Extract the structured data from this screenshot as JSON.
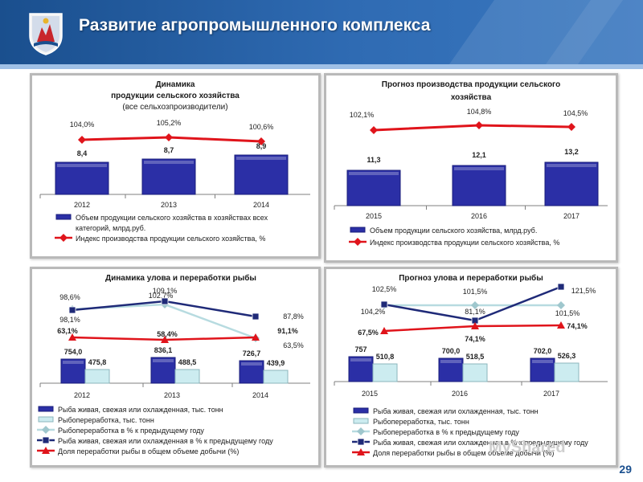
{
  "header": {
    "title": "Развитие агропромышленного комплекса"
  },
  "page_number": "29",
  "watermark": "MyShared",
  "colors": {
    "bar": "#2b2fa6",
    "bar_light": "#ccecf0",
    "line_red": "#e0141b",
    "line_navy": "#1f2a78",
    "line_light": "#b7dbe0"
  },
  "chart_data": [
    {
      "type": "bar",
      "title_lines": [
        "Динамика",
        "продукции сельского хозяйства",
        "(все сельхозпроизводители)"
      ],
      "categories": [
        "2012",
        "2013",
        "2014"
      ],
      "series": [
        {
          "name": "Объем продукции сельского хозяйства в хозяйствах всех категорий, млрд.руб.",
          "legend_lines": [
            "Объем продукции сельского хозяйства в хозяйствах всех",
            "категорий, млрд.руб."
          ],
          "kind": "bar",
          "values": [
            8.4,
            8.7,
            8.9
          ],
          "labels": [
            "8,4",
            "8,7",
            "8,9"
          ]
        },
        {
          "name": "Индекс производства продукции сельского хозяйства, %",
          "legend_lines": [
            "Индекс производства продукции сельского хозяйства, %"
          ],
          "kind": "line",
          "values": [
            104.0,
            105.2,
            100.6
          ],
          "labels": [
            "104,0%",
            "105,2%",
            "100,6%"
          ]
        }
      ],
      "legend_position": "bottom"
    },
    {
      "type": "bar",
      "title_lines": [
        "Прогноз производства продукции сельского",
        "хозяйства"
      ],
      "categories": [
        "2015",
        "2016",
        "2017"
      ],
      "series": [
        {
          "name": "Объем продукции сельского хозяйства, млрд.руб.",
          "legend_lines": [
            "Объем продукции сельского хозяйства, млрд.руб."
          ],
          "kind": "bar",
          "values": [
            11.3,
            12.1,
            13.2
          ],
          "labels": [
            "11,3",
            "12,1",
            "13,2"
          ]
        },
        {
          "name": "Индекс производства продукции сельского хозяйства, %",
          "legend_lines": [
            "Индекс производства продукции сельского хозяйства, %"
          ],
          "kind": "line",
          "values": [
            102.1,
            104.8,
            104.5
          ],
          "labels": [
            "102,1%",
            "104,8%",
            "104,5%"
          ]
        }
      ],
      "legend_position": "bottom"
    },
    {
      "type": "bar",
      "title_lines": [
        "Динамика улова и переработки рыбы"
      ],
      "categories": [
        "2012",
        "2013",
        "2014"
      ],
      "series": [
        {
          "name": "Рыба живая, свежая или охлажденная, тыс. тонн",
          "legend_lines": [
            "Рыба живая, свежая или охлажденная, тыс. тонн"
          ],
          "kind": "bar",
          "values": [
            754.0,
            836.1,
            726.7
          ],
          "labels": [
            "754,0",
            "836,1",
            "726,7"
          ]
        },
        {
          "name": "Рыбопереработка, тыс. тонн",
          "legend_lines": [
            "Рыбопереработка, тыс. тонн"
          ],
          "kind": "bar",
          "values": [
            475.8,
            488.5,
            439.9
          ],
          "labels": [
            "475,8",
            "488,5",
            "439,9"
          ]
        },
        {
          "name": "Рыбопереработка в % к предыдущему году",
          "legend_lines": [
            "Рыбопереработка в % к предыдущему году"
          ],
          "kind": "line",
          "values": [
            98.6,
            102.7,
            63.5
          ],
          "labels": [
            "98,6%",
            "102,7%",
            "63,5%"
          ]
        },
        {
          "name": "Рыба живая, свежая или охлажденная в % к предыдущему году",
          "legend_lines": [
            "Рыба живая, свежая или охлажденная в % к предыдущему году"
          ],
          "kind": "line",
          "values": [
            98.1,
            109.1,
            87.8
          ],
          "labels": [
            "98,1%",
            "109,1%",
            "87,8%"
          ]
        },
        {
          "name": "Доля переработки рыбы в общем объеме добычи (%)",
          "legend_lines": [
            "Доля переработки рыбы в общем объеме добычи (%)"
          ],
          "kind": "line",
          "values": [
            63.1,
            58.4,
            91.1
          ],
          "labels": [
            "63,1%",
            "58,4%",
            "91,1%"
          ]
        }
      ],
      "legend_position": "bottom"
    },
    {
      "type": "bar",
      "title_lines": [
        "Прогноз улова и переработки рыбы"
      ],
      "categories": [
        "2015",
        "2016",
        "2017"
      ],
      "series": [
        {
          "name": "Рыба живая, свежая или охлажденная, тыс. тонн",
          "legend_lines": [
            "Рыба живая, свежая или охлажденная, тыс. тонн"
          ],
          "kind": "bar",
          "values": [
            757,
            700.0,
            702.0
          ],
          "labels": [
            "757",
            "700,0",
            "702,0"
          ]
        },
        {
          "name": "Рыбопереработка, тыс. тонн",
          "legend_lines": [
            "Рыбопереработка, тыс. тонн"
          ],
          "kind": "bar",
          "values": [
            510.8,
            518.5,
            526.3
          ],
          "labels": [
            "510,8",
            "518,5",
            "526,3"
          ]
        },
        {
          "name": "Рыбопереработка в % к предыдущему году",
          "legend_lines": [
            "Рыбопереработка в % к предыдущему году"
          ],
          "kind": "line",
          "values": [
            102.5,
            101.5,
            101.5
          ],
          "labels": [
            "102,5%",
            "101,5%",
            "101,5%"
          ]
        },
        {
          "name": "Рыба живая, свежая или охлажденная в % к предыдущему году",
          "legend_lines": [
            "Рыба живая, свежая или охлажденная в % к предыдущему году"
          ],
          "kind": "line",
          "values": [
            104.2,
            81.1,
            121.5
          ],
          "labels": [
            "104,2%",
            "81,1%",
            "121,5%"
          ]
        },
        {
          "name": "Доля переработки рыбы в общем объеме добычи (%)",
          "legend_lines": [
            "Доля переработки рыбы в общем объеме добычи (%)"
          ],
          "kind": "line",
          "values": [
            67.5,
            74.1,
            74.1
          ],
          "labels": [
            "67,5%",
            "74,1%",
            "74,1%"
          ]
        }
      ],
      "legend_position": "bottom"
    }
  ]
}
